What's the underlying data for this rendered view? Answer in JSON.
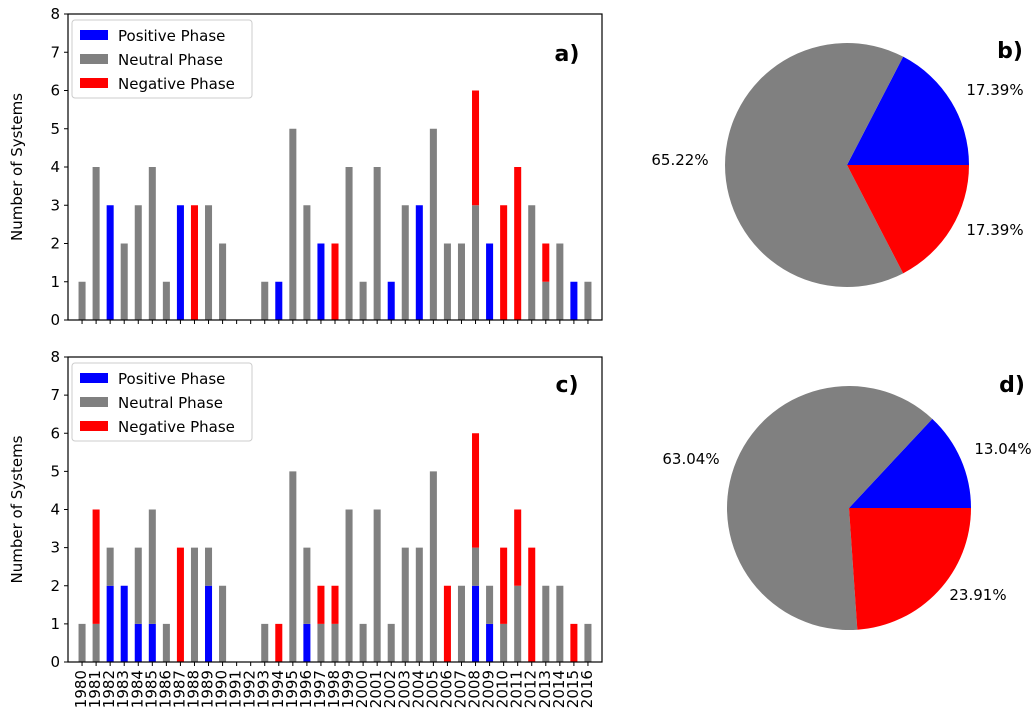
{
  "colors": {
    "positive": "#0000ff",
    "neutral": "#808080",
    "negative": "#ff0000"
  },
  "chart_data": [
    {
      "type": "bar",
      "stacked": true,
      "panel_label": "a)",
      "ylabel": "Number of Systems",
      "ylim": [
        0,
        8
      ],
      "yticks": [
        0,
        1,
        2,
        3,
        4,
        5,
        6,
        7,
        8
      ],
      "legend_position": "top-left",
      "categories": [
        "1980",
        "1981",
        "1982",
        "1983",
        "1984",
        "1985",
        "1986",
        "1987",
        "1988",
        "1989",
        "1990",
        "1991",
        "1992",
        "1993",
        "1994",
        "1995",
        "1996",
        "1997",
        "1998",
        "1999",
        "2000",
        "2001",
        "2002",
        "2003",
        "2004",
        "2005",
        "2006",
        "2007",
        "2008",
        "2009",
        "2010",
        "2011",
        "2012",
        "2013",
        "2014",
        "2015",
        "2016"
      ],
      "show_xtick_labels": false,
      "series": [
        {
          "name": "Positive Phase",
          "color": "positive",
          "values": [
            0,
            0,
            3,
            0,
            0,
            0,
            0,
            3,
            0,
            0,
            0,
            0,
            0,
            0,
            1,
            0,
            0,
            2,
            0,
            0,
            0,
            0,
            1,
            0,
            3,
            0,
            0,
            0,
            0,
            2,
            0,
            0,
            0,
            0,
            0,
            1,
            0
          ]
        },
        {
          "name": "Neutral Phase",
          "color": "neutral",
          "values": [
            1,
            4,
            0,
            2,
            3,
            4,
            1,
            0,
            0,
            3,
            2,
            0,
            0,
            1,
            0,
            5,
            3,
            0,
            0,
            4,
            1,
            4,
            0,
            3,
            0,
            5,
            2,
            2,
            3,
            0,
            0,
            0,
            3,
            1,
            2,
            0,
            1
          ]
        },
        {
          "name": "Negative Phase",
          "color": "negative",
          "values": [
            0,
            0,
            0,
            0,
            0,
            0,
            0,
            0,
            3,
            0,
            0,
            0,
            0,
            0,
            0,
            0,
            0,
            0,
            2,
            0,
            0,
            0,
            0,
            0,
            0,
            0,
            0,
            0,
            3,
            0,
            3,
            4,
            0,
            1,
            0,
            0,
            0
          ]
        }
      ]
    },
    {
      "type": "pie",
      "panel_label": "b)",
      "slices": [
        {
          "label": "17.39%",
          "value": 17.39,
          "color": "positive"
        },
        {
          "label": "65.22%",
          "value": 65.22,
          "color": "neutral"
        },
        {
          "label": "17.39%",
          "value": 17.39,
          "color": "negative"
        }
      ]
    },
    {
      "type": "bar",
      "stacked": true,
      "panel_label": "c)",
      "ylabel": "Number of Systems",
      "ylim": [
        0,
        8
      ],
      "yticks": [
        0,
        1,
        2,
        3,
        4,
        5,
        6,
        7,
        8
      ],
      "legend_position": "top-left",
      "categories": [
        "1980",
        "1981",
        "1982",
        "1983",
        "1984",
        "1985",
        "1986",
        "1987",
        "1988",
        "1989",
        "1990",
        "1991",
        "1992",
        "1993",
        "1994",
        "1995",
        "1996",
        "1997",
        "1998",
        "1999",
        "2000",
        "2001",
        "2002",
        "2003",
        "2004",
        "2005",
        "2006",
        "2007",
        "2008",
        "2009",
        "2010",
        "2011",
        "2012",
        "2013",
        "2014",
        "2015",
        "2016"
      ],
      "show_xtick_labels": true,
      "series": [
        {
          "name": "Positive Phase",
          "color": "positive",
          "values": [
            0,
            0,
            2,
            2,
            1,
            1,
            0,
            0,
            0,
            2,
            0,
            0,
            0,
            0,
            0,
            0,
            1,
            0,
            0,
            0,
            0,
            0,
            0,
            0,
            0,
            0,
            0,
            0,
            2,
            1,
            0,
            0,
            0,
            0,
            0,
            0,
            0
          ]
        },
        {
          "name": "Neutral Phase",
          "color": "neutral",
          "values": [
            1,
            1,
            1,
            0,
            2,
            3,
            1,
            0,
            3,
            1,
            2,
            0,
            0,
            1,
            0,
            5,
            2,
            1,
            1,
            4,
            1,
            4,
            1,
            3,
            3,
            5,
            0,
            2,
            1,
            1,
            1,
            2,
            0,
            2,
            2,
            0,
            1
          ]
        },
        {
          "name": "Negative Phase",
          "color": "negative",
          "values": [
            0,
            3,
            0,
            0,
            0,
            0,
            0,
            3,
            0,
            0,
            0,
            0,
            0,
            0,
            1,
            0,
            0,
            1,
            1,
            0,
            0,
            0,
            0,
            0,
            0,
            0,
            2,
            0,
            3,
            0,
            2,
            2,
            3,
            0,
            0,
            1,
            0
          ]
        }
      ]
    },
    {
      "type": "pie",
      "panel_label": "d)",
      "slices": [
        {
          "label": "13.04%",
          "value": 13.04,
          "color": "positive"
        },
        {
          "label": "63.04%",
          "value": 63.04,
          "color": "neutral"
        },
        {
          "label": "23.91%",
          "value": 23.91,
          "color": "negative"
        }
      ]
    }
  ]
}
